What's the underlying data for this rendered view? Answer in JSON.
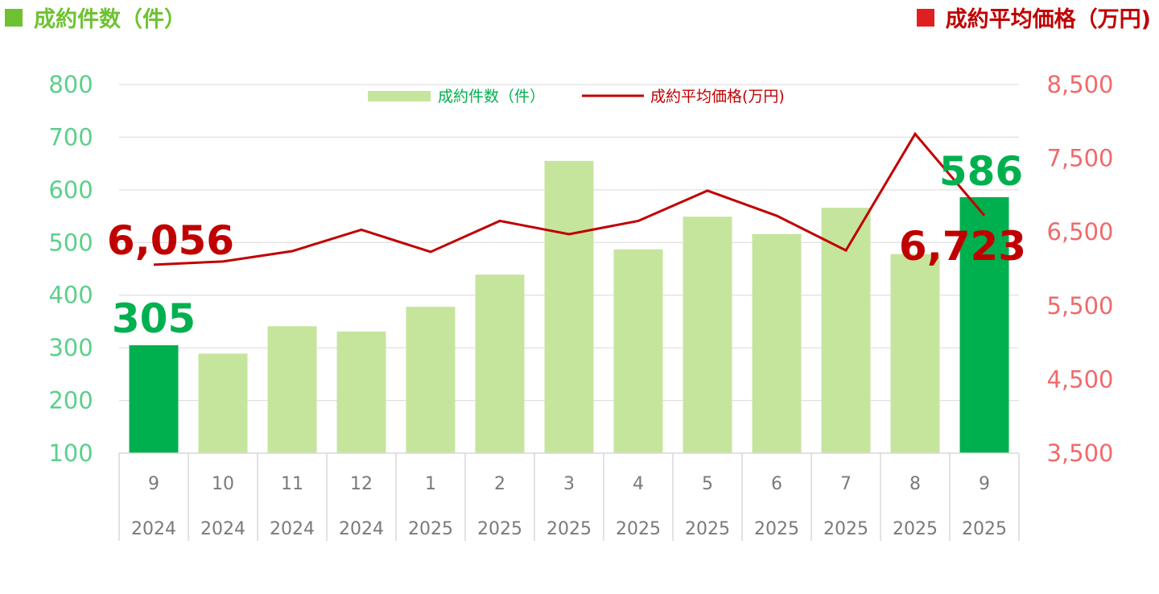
{
  "titles": {
    "left": "成約件数（件）",
    "right": "成約平均価格（万円)"
  },
  "colors": {
    "bar_light": "#c5e59d",
    "bar_highlight": "#00b04f",
    "line": "#c00000",
    "left_axis": "#5ccf8c",
    "right_axis": "#f06a6a",
    "left_title": "#6ec232",
    "right_title": "#c00000",
    "left_square": "#6ec232",
    "right_square": "#e02020"
  },
  "chart_data": {
    "type": "bar+line",
    "categories": [
      {
        "month": "9",
        "year": "2024"
      },
      {
        "month": "10",
        "year": "2024"
      },
      {
        "month": "11",
        "year": "2024"
      },
      {
        "month": "12",
        "year": "2024"
      },
      {
        "month": "1",
        "year": "2025"
      },
      {
        "month": "2",
        "year": "2025"
      },
      {
        "month": "3",
        "year": "2025"
      },
      {
        "month": "4",
        "year": "2025"
      },
      {
        "month": "5",
        "year": "2025"
      },
      {
        "month": "6",
        "year": "2025"
      },
      {
        "month": "7",
        "year": "2025"
      },
      {
        "month": "8",
        "year": "2025"
      },
      {
        "month": "9",
        "year": "2025"
      }
    ],
    "series": [
      {
        "name": "成約件数（件）",
        "type": "bar",
        "axis": "left",
        "values": [
          305,
          289,
          341,
          331,
          378,
          439,
          655,
          487,
          549,
          516,
          566,
          478,
          586
        ],
        "highlight": [
          true,
          false,
          false,
          false,
          false,
          false,
          false,
          false,
          false,
          false,
          false,
          false,
          true
        ]
      },
      {
        "name": "成約平均価格(万円)",
        "type": "line",
        "axis": "right",
        "values": [
          6056,
          6100,
          6240,
          6530,
          6230,
          6650,
          6470,
          6650,
          7060,
          6720,
          6250,
          7830,
          6723
        ]
      }
    ],
    "left_axis": {
      "min": 100,
      "max": 800,
      "ticks": [
        "800",
        "700",
        "600",
        "500",
        "400",
        "300",
        "200",
        "100"
      ]
    },
    "right_axis": {
      "min": 3500,
      "max": 8500,
      "ticks": [
        "8,500",
        "7,500",
        "6,500",
        "5,500",
        "4,500",
        "3,500"
      ]
    },
    "grid": true,
    "legend_position": "top-center",
    "annotations": {
      "bar_first": "305",
      "bar_last": "586",
      "line_first": "6,056",
      "line_last": "6,723"
    }
  }
}
